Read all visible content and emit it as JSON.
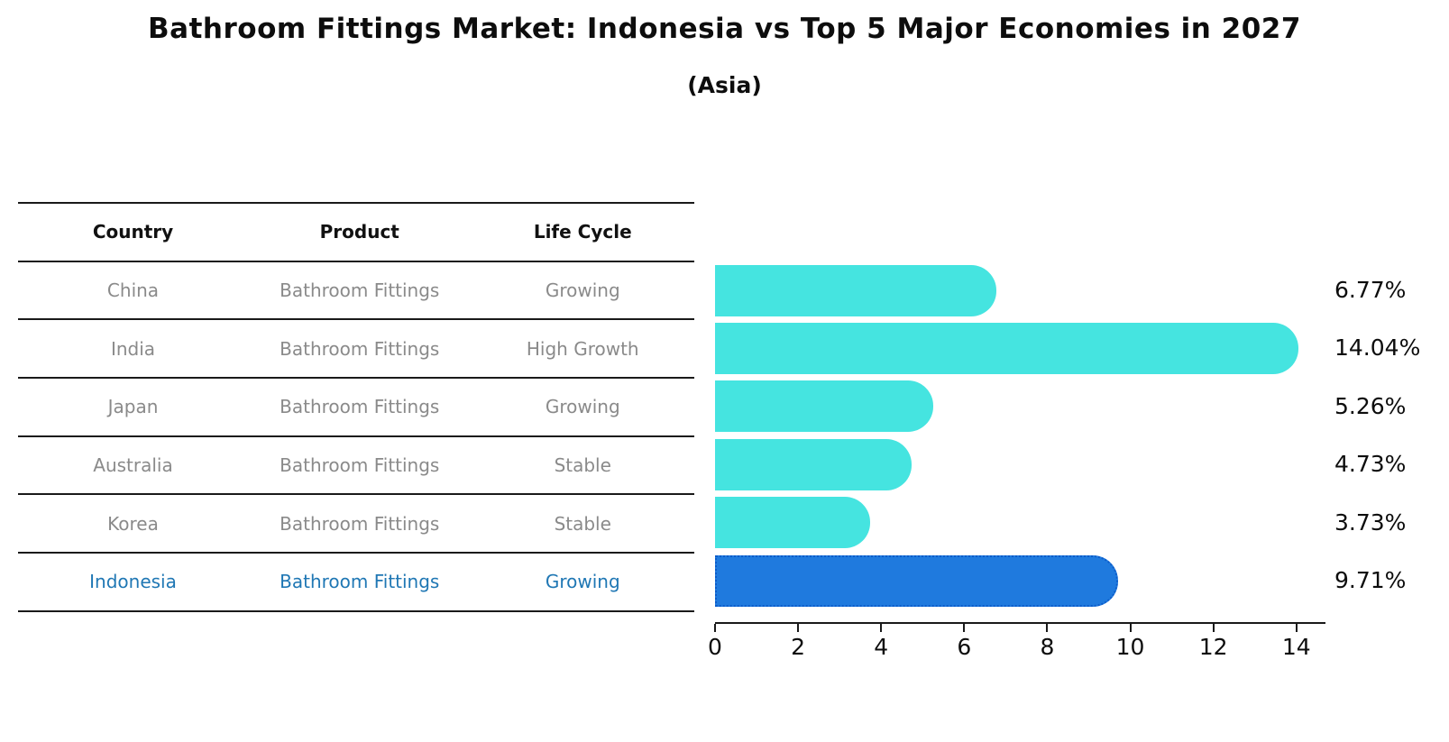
{
  "title": "Bathroom Fittings Market: Indonesia vs Top 5 Major Economies in 2027",
  "subtitle": "(Asia)",
  "table": {
    "headers": [
      "Country",
      "Product",
      "Life Cycle"
    ],
    "rows": [
      {
        "country": "China",
        "product": "Bathroom Fittings",
        "life_cycle": "Growing",
        "highlighted": false
      },
      {
        "country": "India",
        "product": "Bathroom Fittings",
        "life_cycle": "High Growth",
        "highlighted": false
      },
      {
        "country": "Japan",
        "product": "Bathroom Fittings",
        "life_cycle": "Growing",
        "highlighted": false
      },
      {
        "country": "Australia",
        "product": "Bathroom Fittings",
        "life_cycle": "Stable",
        "highlighted": false
      },
      {
        "country": "Korea",
        "product": "Bathroom Fittings",
        "life_cycle": "Stable",
        "highlighted": false
      },
      {
        "country": "Indonesia",
        "product": "Bathroom Fittings",
        "life_cycle": "Growing",
        "highlighted": true
      }
    ]
  },
  "chart_data": {
    "type": "bar",
    "orientation": "horizontal",
    "title": "Bathroom Fittings Market: Indonesia vs Top 5 Major Economies in 2027 (Asia)",
    "categories": [
      "China",
      "India",
      "Japan",
      "Australia",
      "Korea",
      "Indonesia"
    ],
    "values": [
      6.77,
      14.04,
      5.26,
      4.73,
      3.73,
      9.71
    ],
    "value_labels": [
      "6.77%",
      "14.04%",
      "5.26%",
      "4.73%",
      "3.73%",
      "9.71%"
    ],
    "xticks": [
      0,
      2,
      4,
      6,
      8,
      10,
      12,
      14
    ],
    "xlim": [
      0,
      14.7
    ],
    "grid": false,
    "legend": false,
    "highlight_index": 5
  },
  "colors": {
    "bar_default": "#45e4e0",
    "bar_highlight": "#1f7ade",
    "highlight_border": "#0d5cc9",
    "highlight_text": "#1f77b4",
    "table_text": "#8a8a8a",
    "axis_text": "#0d0d0d"
  }
}
